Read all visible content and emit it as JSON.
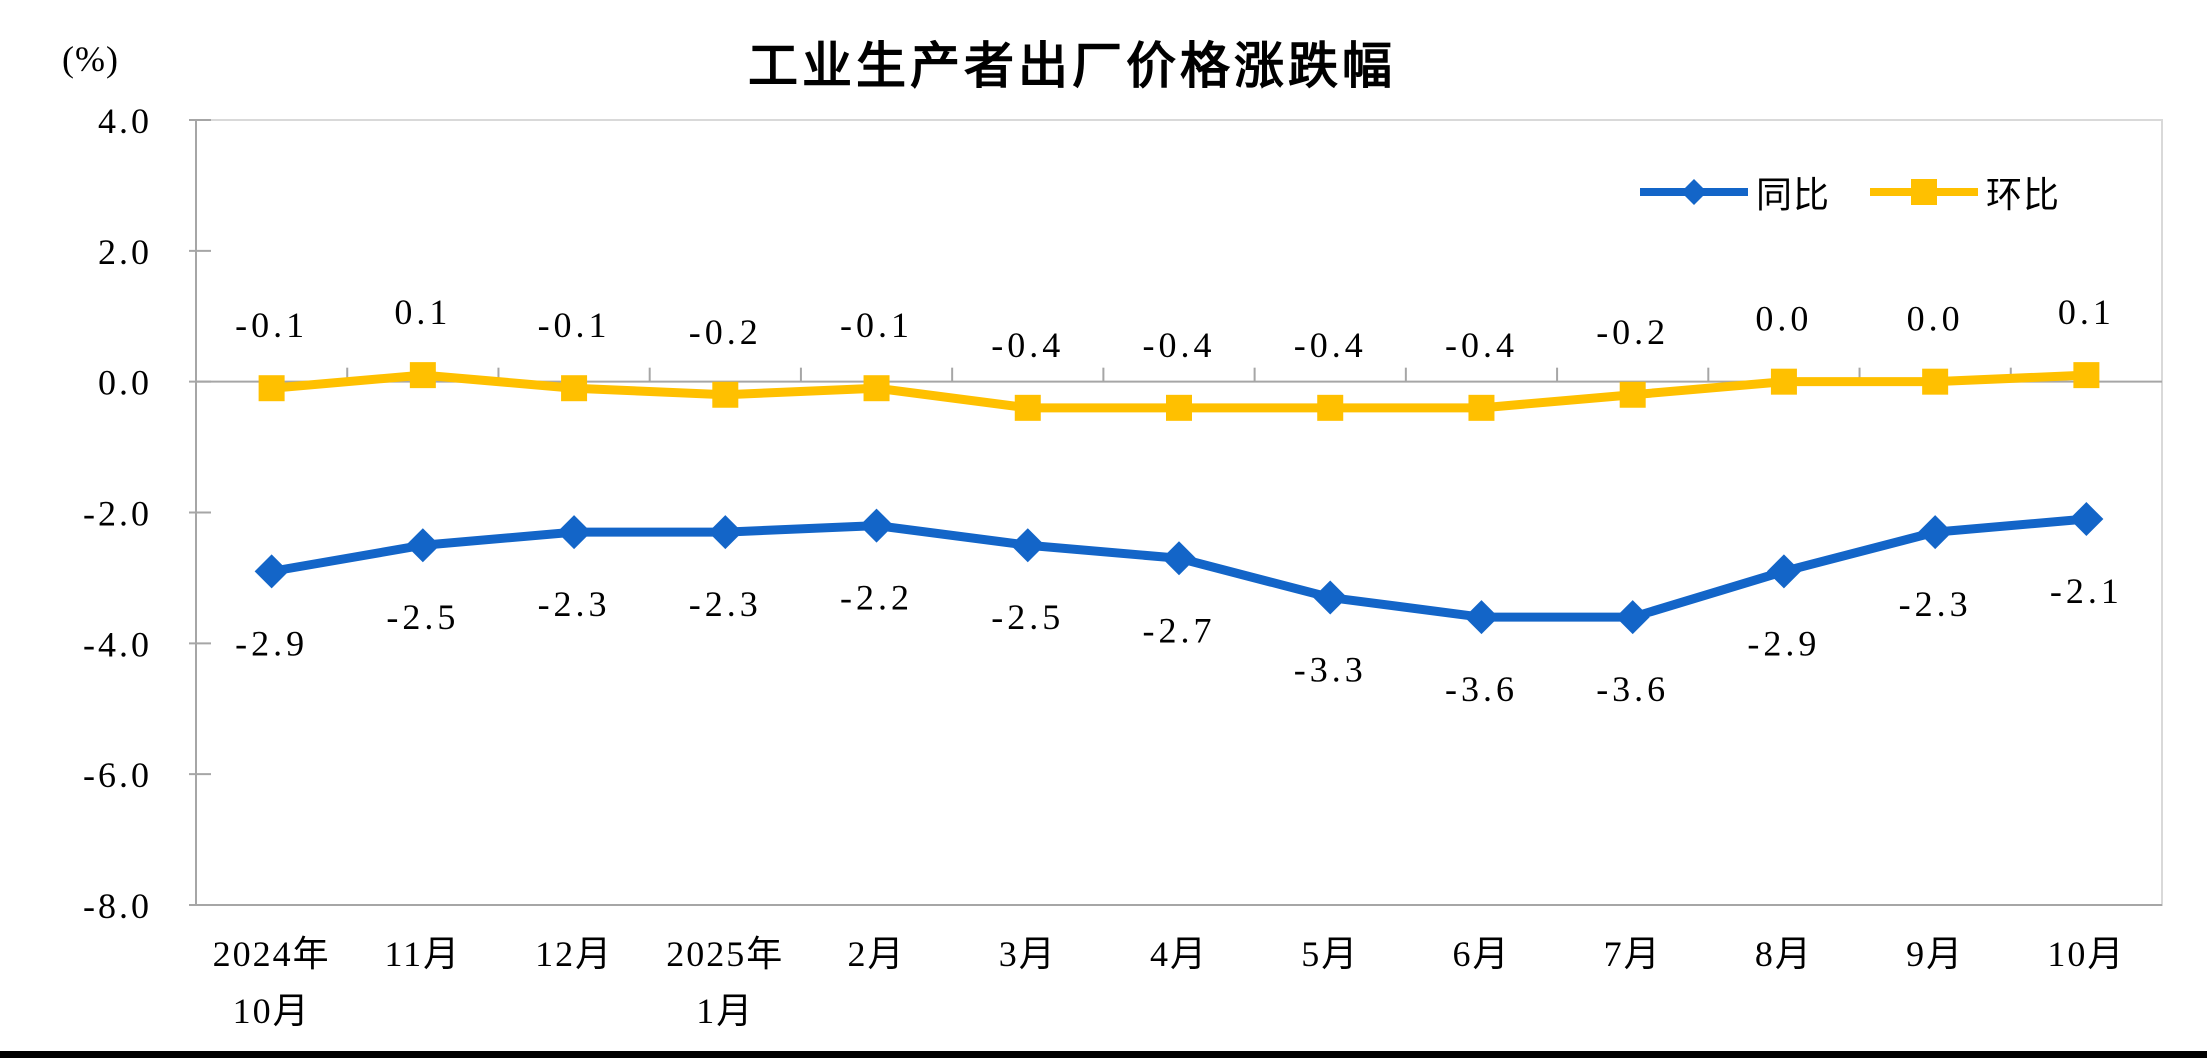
{
  "chart_data": {
    "type": "line",
    "title": "工业生产者出厂价格涨跌幅",
    "unit_label": "(%)",
    "categories": [
      [
        "2024年",
        "10月"
      ],
      [
        "11月"
      ],
      [
        "12月"
      ],
      [
        "2025年",
        "1月"
      ],
      [
        "2月"
      ],
      [
        "3月"
      ],
      [
        "4月"
      ],
      [
        "5月"
      ],
      [
        "6月"
      ],
      [
        "7月"
      ],
      [
        "8月"
      ],
      [
        "9月"
      ],
      [
        "10月"
      ]
    ],
    "series": [
      {
        "name": "同比",
        "color": "#1365C8",
        "marker": "diamond",
        "label_position": "below",
        "values": [
          -2.9,
          -2.5,
          -2.3,
          -2.3,
          -2.2,
          -2.5,
          -2.7,
          -3.3,
          -3.6,
          -3.6,
          -2.9,
          -2.3,
          -2.1
        ],
        "labels": [
          "-2.9",
          "-2.5",
          "-2.3",
          "-2.3",
          "-2.2",
          "-2.5",
          "-2.7",
          "-3.3",
          "-3.6",
          "-3.6",
          "-2.9",
          "-2.3",
          "-2.1"
        ]
      },
      {
        "name": "环比",
        "color": "#FFC000",
        "marker": "square",
        "label_position": "above",
        "values": [
          -0.1,
          0.1,
          -0.1,
          -0.2,
          -0.1,
          -0.4,
          -0.4,
          -0.4,
          -0.4,
          -0.2,
          0.0,
          0.0,
          0.1
        ],
        "labels": [
          "-0.1",
          "0.1",
          "-0.1",
          "-0.2",
          "-0.1",
          "-0.4",
          "-0.4",
          "-0.4",
          "-0.4",
          "-0.2",
          "0.0",
          "0.0",
          "0.1"
        ]
      }
    ],
    "y_axis": {
      "min": -8.0,
      "max": 4.0,
      "step": 2.0,
      "tick_labels": [
        "4.0",
        "2.0",
        "0.0",
        "-2.0",
        "-4.0",
        "-6.0",
        "-8.0"
      ]
    },
    "legend": {
      "position": "top-right-inside",
      "items": [
        "同比",
        "环比"
      ]
    },
    "grid": "zero-baseline-only",
    "colors": {
      "axis": "#A6A6A6",
      "plot_border": "#D9D9D9",
      "text": "#000000",
      "background": "#FFFFFF",
      "bottom_edge": "#000000"
    }
  }
}
